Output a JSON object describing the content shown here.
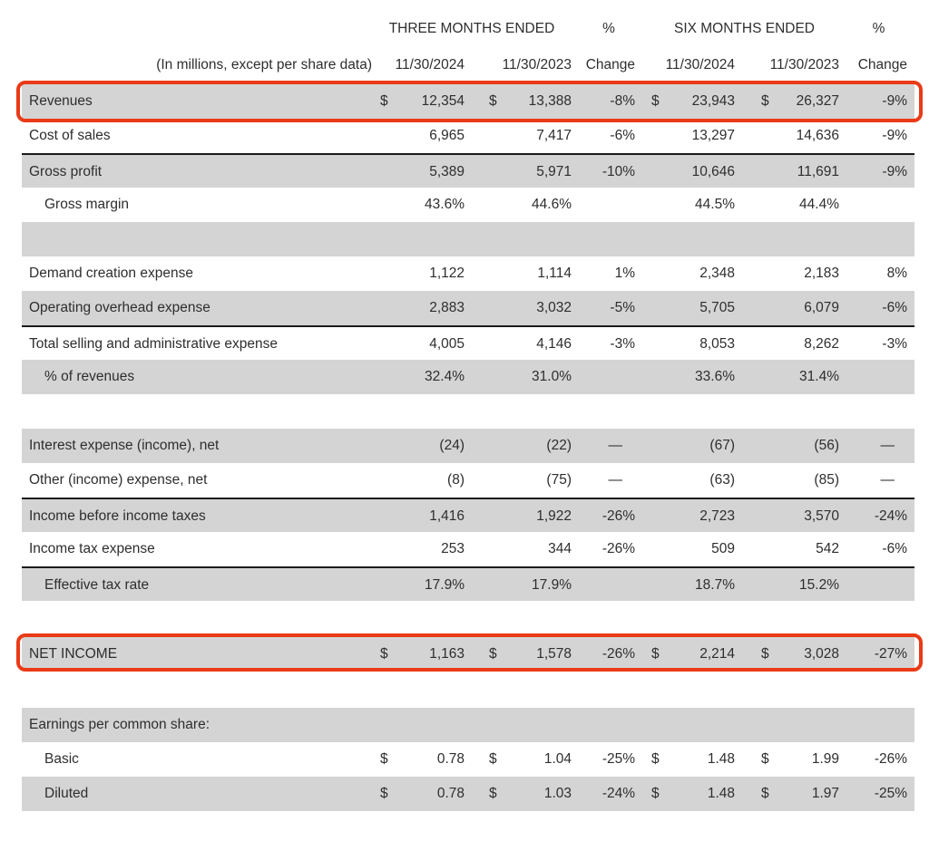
{
  "colors": {
    "row_shade": "#d4d4d4",
    "annotation_red": "#ea3a17",
    "rule_black": "#1b1b1b",
    "text": "#2e2e2e"
  },
  "header": {
    "note": "(In millions, except per share data)",
    "group_three_months": "THREE MONTHS ENDED",
    "group_six_months": "SIX MONTHS ENDED",
    "pct_left": "%",
    "pct_right": "%",
    "dates": [
      "11/30/2024",
      "11/30/2023",
      "Change",
      "11/30/2024",
      "11/30/2023",
      "Change"
    ]
  },
  "table": {
    "rows": [
      {
        "label": "Revenues",
        "shaded": true,
        "highlighted": true,
        "cells": [
          "$",
          "12,354",
          "$",
          "13,388",
          "-8%",
          "$",
          "23,943",
          "$",
          "26,327",
          "-9%"
        ]
      },
      {
        "label": "Cost of sales",
        "cells": [
          "",
          "6,965",
          "",
          "7,417",
          "-6%",
          "",
          "13,297",
          "",
          "14,636",
          "-9%"
        ]
      },
      {
        "label": "Gross profit",
        "shaded": true,
        "top_border": true,
        "cells": [
          "",
          "5,389",
          "",
          "5,971",
          "-10%",
          "",
          "10,646",
          "",
          "11,691",
          "-9%"
        ]
      },
      {
        "label": "Gross margin",
        "indent": true,
        "cells": [
          "",
          "43.6%",
          "",
          "44.6%",
          "",
          "",
          "44.5%",
          "",
          "44.4%",
          ""
        ]
      },
      {
        "spacer": true,
        "shaded": true
      },
      {
        "label": "Demand creation expense",
        "cells": [
          "",
          "1,122",
          "",
          "1,114",
          "1%",
          "",
          "2,348",
          "",
          "2,183",
          "8%"
        ]
      },
      {
        "label": "Operating overhead expense",
        "shaded": true,
        "cells": [
          "",
          "2,883",
          "",
          "3,032",
          "-5%",
          "",
          "5,705",
          "",
          "6,079",
          "-6%"
        ]
      },
      {
        "label": "Total selling and administrative expense",
        "top_border": true,
        "cells": [
          "",
          "4,005",
          "",
          "4,146",
          "-3%",
          "",
          "8,053",
          "",
          "8,262",
          "-3%"
        ]
      },
      {
        "label": "% of revenues",
        "indent": true,
        "shaded": true,
        "cells": [
          "",
          "32.4%",
          "",
          "31.0%",
          "",
          "",
          "33.6%",
          "",
          "31.4%",
          ""
        ]
      },
      {
        "spacer": true
      },
      {
        "label": "Interest expense (income), net",
        "shaded": true,
        "cells": [
          "",
          "(24)",
          "",
          "(22)",
          "—",
          "",
          "(67)",
          "",
          "(56)",
          "—"
        ]
      },
      {
        "label": "Other (income) expense, net",
        "cells": [
          "",
          "(8)",
          "",
          "(75)",
          "—",
          "",
          "(63)",
          "",
          "(85)",
          "—"
        ]
      },
      {
        "label": "Income before income taxes",
        "shaded": true,
        "top_border": true,
        "cells": [
          "",
          "1,416",
          "",
          "1,922",
          "-26%",
          "",
          "2,723",
          "",
          "3,570",
          "-24%"
        ]
      },
      {
        "label": "Income tax expense",
        "cells": [
          "",
          "253",
          "",
          "344",
          "-26%",
          "",
          "509",
          "",
          "542",
          "-6%"
        ]
      },
      {
        "label": "Effective tax rate",
        "indent": true,
        "shaded": true,
        "top_border": true,
        "cells": [
          "",
          "17.9%",
          "",
          "17.9%",
          "",
          "",
          "18.7%",
          "",
          "15.2%",
          ""
        ]
      },
      {
        "spacer": true
      },
      {
        "label": "NET INCOME",
        "shaded": true,
        "highlighted": true,
        "top_border": true,
        "bottom_border": true,
        "cells": [
          "$",
          "1,163",
          "$",
          "1,578",
          "-26%",
          "$",
          "2,214",
          "$",
          "3,028",
          "-27%"
        ]
      },
      {
        "spacer": true,
        "height": 42
      },
      {
        "label": "Earnings per common share:",
        "shaded": true,
        "cells": [
          "",
          "",
          "",
          "",
          "",
          "",
          "",
          "",
          "",
          ""
        ]
      },
      {
        "label": "Basic",
        "indent": true,
        "cells": [
          "$",
          "0.78",
          "$",
          "1.04",
          "-25%",
          "$",
          "1.48",
          "$",
          "1.99",
          "-26%"
        ]
      },
      {
        "label": "Diluted",
        "indent": true,
        "shaded": true,
        "cells": [
          "$",
          "0.78",
          "$",
          "1.03",
          "-24%",
          "$",
          "1.48",
          "$",
          "1.97",
          "-25%"
        ]
      }
    ]
  }
}
